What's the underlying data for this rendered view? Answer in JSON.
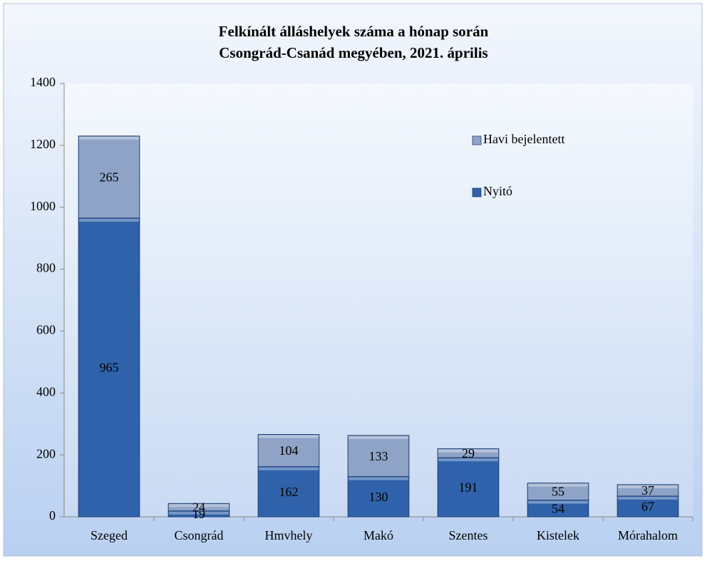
{
  "chart_data": {
    "type": "stacked_bar",
    "title": [
      "Felkínált álláshelyek száma a hónap során",
      "Csongrád-Csanád megyében, 2021. április"
    ],
    "categories": [
      "Szeged",
      "Csongrád",
      "Hmvhely",
      "Makó",
      "Szentes",
      "Kistelek",
      "Mórahalom"
    ],
    "series": [
      {
        "name": "Nyitó",
        "color": "#2f62aa",
        "values": [
          965,
          19,
          162,
          130,
          191,
          54,
          67
        ]
      },
      {
        "name": "Havi bejelentett",
        "color": "#8ea3c6",
        "values": [
          265,
          24,
          104,
          133,
          29,
          55,
          37
        ]
      }
    ],
    "ylim": [
      0,
      1400
    ],
    "yticks": [
      0,
      200,
      400,
      600,
      800,
      1000,
      1200,
      1400
    ],
    "legend": "upper right",
    "grid": false
  }
}
